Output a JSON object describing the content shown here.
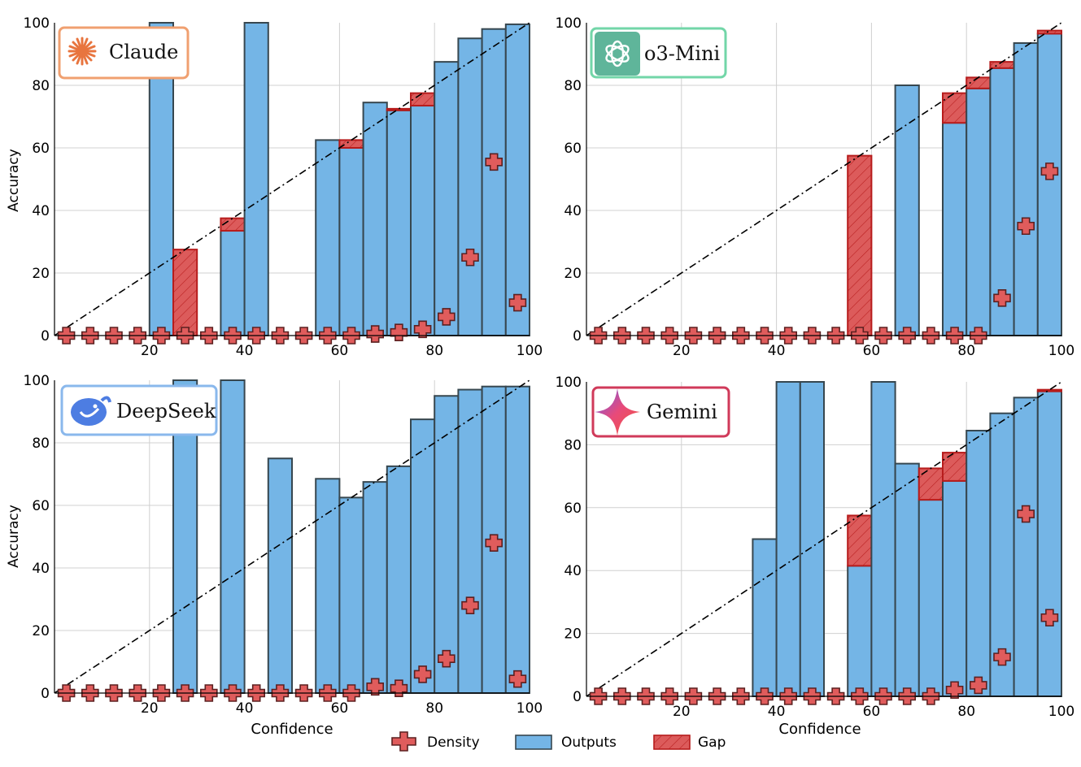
{
  "chart_data": [
    {
      "type": "bar",
      "model": "Claude",
      "xlabel": "",
      "ylabel": "Accuracy",
      "xlim": [
        0,
        100
      ],
      "ylim": [
        0,
        100
      ],
      "xticks": [
        "20",
        "40",
        "60",
        "80",
        "100"
      ],
      "yticks": [
        "0",
        "20",
        "40",
        "60",
        "80",
        "100"
      ],
      "grid": true,
      "diagonal": "dash-dot",
      "bin_width": 5,
      "bins": [
        {
          "center": 2.5,
          "output": null,
          "gap_top": null,
          "density": 0
        },
        {
          "center": 7.5,
          "output": null,
          "gap_top": null,
          "density": 0
        },
        {
          "center": 12.5,
          "output": null,
          "gap_top": null,
          "density": 0
        },
        {
          "center": 17.5,
          "output": null,
          "gap_top": null,
          "density": 0
        },
        {
          "center": 22.5,
          "output": 100,
          "gap_top": null,
          "density": 0
        },
        {
          "center": 27.5,
          "output": 0,
          "gap_top": 27.5,
          "density": 0
        },
        {
          "center": 32.5,
          "output": null,
          "gap_top": null,
          "density": 0
        },
        {
          "center": 37.5,
          "output": 33.5,
          "gap_top": 37.5,
          "density": 0
        },
        {
          "center": 42.5,
          "output": 100,
          "gap_top": null,
          "density": 0
        },
        {
          "center": 47.5,
          "output": null,
          "gap_top": null,
          "density": 0
        },
        {
          "center": 52.5,
          "output": null,
          "gap_top": null,
          "density": 0
        },
        {
          "center": 57.5,
          "output": 62.5,
          "gap_top": null,
          "density": 0
        },
        {
          "center": 62.5,
          "output": 60,
          "gap_top": 62.5,
          "density": 0
        },
        {
          "center": 67.5,
          "output": 74.5,
          "gap_top": null,
          "density": 0.5
        },
        {
          "center": 72.5,
          "output": 72,
          "gap_top": 72.5,
          "density": 1
        },
        {
          "center": 77.5,
          "output": 73.5,
          "gap_top": 77.5,
          "density": 2
        },
        {
          "center": 82.5,
          "output": 87.5,
          "gap_top": null,
          "density": 6
        },
        {
          "center": 87.5,
          "output": 95,
          "gap_top": null,
          "density": 25
        },
        {
          "center": 92.5,
          "output": 98,
          "gap_top": null,
          "density": 55.5
        },
        {
          "center": 97.5,
          "output": 99.5,
          "gap_top": null,
          "density": 10.5
        }
      ]
    },
    {
      "type": "bar",
      "model": "o3-Mini",
      "xlabel": "",
      "ylabel": "",
      "xlim": [
        0,
        100
      ],
      "ylim": [
        0,
        100
      ],
      "xticks": [
        "20",
        "40",
        "60",
        "80",
        "100"
      ],
      "yticks": [
        "0",
        "20",
        "40",
        "60",
        "80",
        "100"
      ],
      "grid": true,
      "diagonal": "dash-dot",
      "bin_width": 5,
      "bins": [
        {
          "center": 2.5,
          "output": null,
          "gap_top": null,
          "density": 0
        },
        {
          "center": 7.5,
          "output": null,
          "gap_top": null,
          "density": 0
        },
        {
          "center": 12.5,
          "output": null,
          "gap_top": null,
          "density": 0
        },
        {
          "center": 17.5,
          "output": null,
          "gap_top": null,
          "density": 0
        },
        {
          "center": 22.5,
          "output": null,
          "gap_top": null,
          "density": 0
        },
        {
          "center": 27.5,
          "output": null,
          "gap_top": null,
          "density": 0
        },
        {
          "center": 32.5,
          "output": null,
          "gap_top": null,
          "density": 0
        },
        {
          "center": 37.5,
          "output": null,
          "gap_top": null,
          "density": 0
        },
        {
          "center": 42.5,
          "output": null,
          "gap_top": null,
          "density": 0
        },
        {
          "center": 47.5,
          "output": null,
          "gap_top": null,
          "density": 0
        },
        {
          "center": 52.5,
          "output": null,
          "gap_top": null,
          "density": 0
        },
        {
          "center": 57.5,
          "output": 0,
          "gap_top": 57.5,
          "density": 0
        },
        {
          "center": 62.5,
          "output": null,
          "gap_top": null,
          "density": 0
        },
        {
          "center": 67.5,
          "output": 80,
          "gap_top": null,
          "density": 0
        },
        {
          "center": 72.5,
          "output": null,
          "gap_top": null,
          "density": 0
        },
        {
          "center": 77.5,
          "output": 68,
          "gap_top": 77.5,
          "density": 0
        },
        {
          "center": 82.5,
          "output": 79,
          "gap_top": 82.5,
          "density": 0
        },
        {
          "center": 87.5,
          "output": 85.5,
          "gap_top": 87.5,
          "density": 12
        },
        {
          "center": 92.5,
          "output": 93.5,
          "gap_top": null,
          "density": 35
        },
        {
          "center": 97.5,
          "output": 96.5,
          "gap_top": 97.5,
          "density": 52.5
        }
      ]
    },
    {
      "type": "bar",
      "model": "DeepSeek",
      "xlabel": "Confidence",
      "ylabel": "Accuracy",
      "xlim": [
        0,
        100
      ],
      "ylim": [
        0,
        100
      ],
      "xticks": [
        "20",
        "40",
        "60",
        "80",
        "100"
      ],
      "yticks": [
        "0",
        "20",
        "40",
        "60",
        "80",
        "100"
      ],
      "grid": true,
      "diagonal": "dash-dot",
      "bin_width": 5,
      "bins": [
        {
          "center": 2.5,
          "output": null,
          "gap_top": null,
          "density": 0
        },
        {
          "center": 7.5,
          "output": null,
          "gap_top": null,
          "density": 0
        },
        {
          "center": 12.5,
          "output": null,
          "gap_top": null,
          "density": 0
        },
        {
          "center": 17.5,
          "output": null,
          "gap_top": null,
          "density": 0
        },
        {
          "center": 22.5,
          "output": null,
          "gap_top": null,
          "density": 0
        },
        {
          "center": 27.5,
          "output": 100,
          "gap_top": null,
          "density": 0
        },
        {
          "center": 32.5,
          "output": null,
          "gap_top": null,
          "density": 0
        },
        {
          "center": 37.5,
          "output": 100,
          "gap_top": null,
          "density": 0
        },
        {
          "center": 42.5,
          "output": null,
          "gap_top": null,
          "density": 0
        },
        {
          "center": 47.5,
          "output": 75,
          "gap_top": null,
          "density": 0
        },
        {
          "center": 52.5,
          "output": null,
          "gap_top": null,
          "density": 0
        },
        {
          "center": 57.5,
          "output": 68.5,
          "gap_top": null,
          "density": 0
        },
        {
          "center": 62.5,
          "output": 62.5,
          "gap_top": null,
          "density": 0
        },
        {
          "center": 67.5,
          "output": 67.5,
          "gap_top": null,
          "density": 2
        },
        {
          "center": 72.5,
          "output": 72.5,
          "gap_top": null,
          "density": 1.5
        },
        {
          "center": 77.5,
          "output": 87.5,
          "gap_top": null,
          "density": 6
        },
        {
          "center": 82.5,
          "output": 95,
          "gap_top": null,
          "density": 11
        },
        {
          "center": 87.5,
          "output": 97,
          "gap_top": null,
          "density": 28
        },
        {
          "center": 92.5,
          "output": 98,
          "gap_top": null,
          "density": 48
        },
        {
          "center": 97.5,
          "output": 98,
          "gap_top": null,
          "density": 4.5
        }
      ]
    },
    {
      "type": "bar",
      "model": "Gemini",
      "xlabel": "Confidence",
      "ylabel": "",
      "xlim": [
        0,
        100
      ],
      "ylim": [
        0,
        100
      ],
      "xticks": [
        "20",
        "40",
        "60",
        "80",
        "100"
      ],
      "yticks": [
        "0",
        "20",
        "40",
        "60",
        "80",
        "100"
      ],
      "grid": true,
      "diagonal": "dash-dot",
      "bin_width": 5,
      "bins": [
        {
          "center": 2.5,
          "output": null,
          "gap_top": null,
          "density": 0
        },
        {
          "center": 7.5,
          "output": null,
          "gap_top": null,
          "density": 0
        },
        {
          "center": 12.5,
          "output": null,
          "gap_top": null,
          "density": 0
        },
        {
          "center": 17.5,
          "output": null,
          "gap_top": null,
          "density": 0
        },
        {
          "center": 22.5,
          "output": null,
          "gap_top": null,
          "density": 0
        },
        {
          "center": 27.5,
          "output": null,
          "gap_top": null,
          "density": 0
        },
        {
          "center": 32.5,
          "output": null,
          "gap_top": null,
          "density": 0
        },
        {
          "center": 37.5,
          "output": 50,
          "gap_top": null,
          "density": 0
        },
        {
          "center": 42.5,
          "output": 100,
          "gap_top": null,
          "density": 0
        },
        {
          "center": 47.5,
          "output": 100,
          "gap_top": null,
          "density": 0
        },
        {
          "center": 52.5,
          "output": null,
          "gap_top": null,
          "density": 0
        },
        {
          "center": 57.5,
          "output": 41.5,
          "gap_top": 57.5,
          "density": 0
        },
        {
          "center": 62.5,
          "output": 100,
          "gap_top": null,
          "density": 0
        },
        {
          "center": 67.5,
          "output": 74,
          "gap_top": null,
          "density": 0
        },
        {
          "center": 72.5,
          "output": 62.5,
          "gap_top": 72.5,
          "density": 0
        },
        {
          "center": 77.5,
          "output": 68.5,
          "gap_top": 77.5,
          "density": 2
        },
        {
          "center": 82.5,
          "output": 84.5,
          "gap_top": null,
          "density": 3.5
        },
        {
          "center": 87.5,
          "output": 90,
          "gap_top": null,
          "density": 12.5
        },
        {
          "center": 92.5,
          "output": 95,
          "gap_top": null,
          "density": 58
        },
        {
          "center": 97.5,
          "output": 97,
          "gap_top": 97.5,
          "density": 25
        }
      ]
    }
  ],
  "legend": {
    "density_label": "Density",
    "outputs_label": "Outputs",
    "gap_label": "Gap",
    "placement": "bottom-center"
  },
  "colors": {
    "outputs_fill": "#74b5e6",
    "outputs_edge": "#37474f",
    "gap_fill": "#dc5b5b",
    "gap_edge": "#b71c1c",
    "density_fill": "#e05c5c",
    "density_edge": "#5b2020",
    "grid": "#d0d0d0",
    "claude_border": "#f0a070",
    "claude_logo": "#e8753f",
    "o3mini_border": "#72d6a8",
    "o3mini_logo": "#5fb59a",
    "deepseek_border": "#8ab8ec",
    "deepseek_logo": "#4d7de2",
    "gemini_border": "#d03a5a"
  },
  "badges": [
    {
      "label": "Claude",
      "icon": "claude-starburst-icon"
    },
    {
      "label": "o3-Mini",
      "icon": "openai-knot-icon"
    },
    {
      "label": "DeepSeek",
      "icon": "deepseek-whale-icon"
    },
    {
      "label": "Gemini",
      "icon": "gemini-sparkle-icon"
    }
  ]
}
